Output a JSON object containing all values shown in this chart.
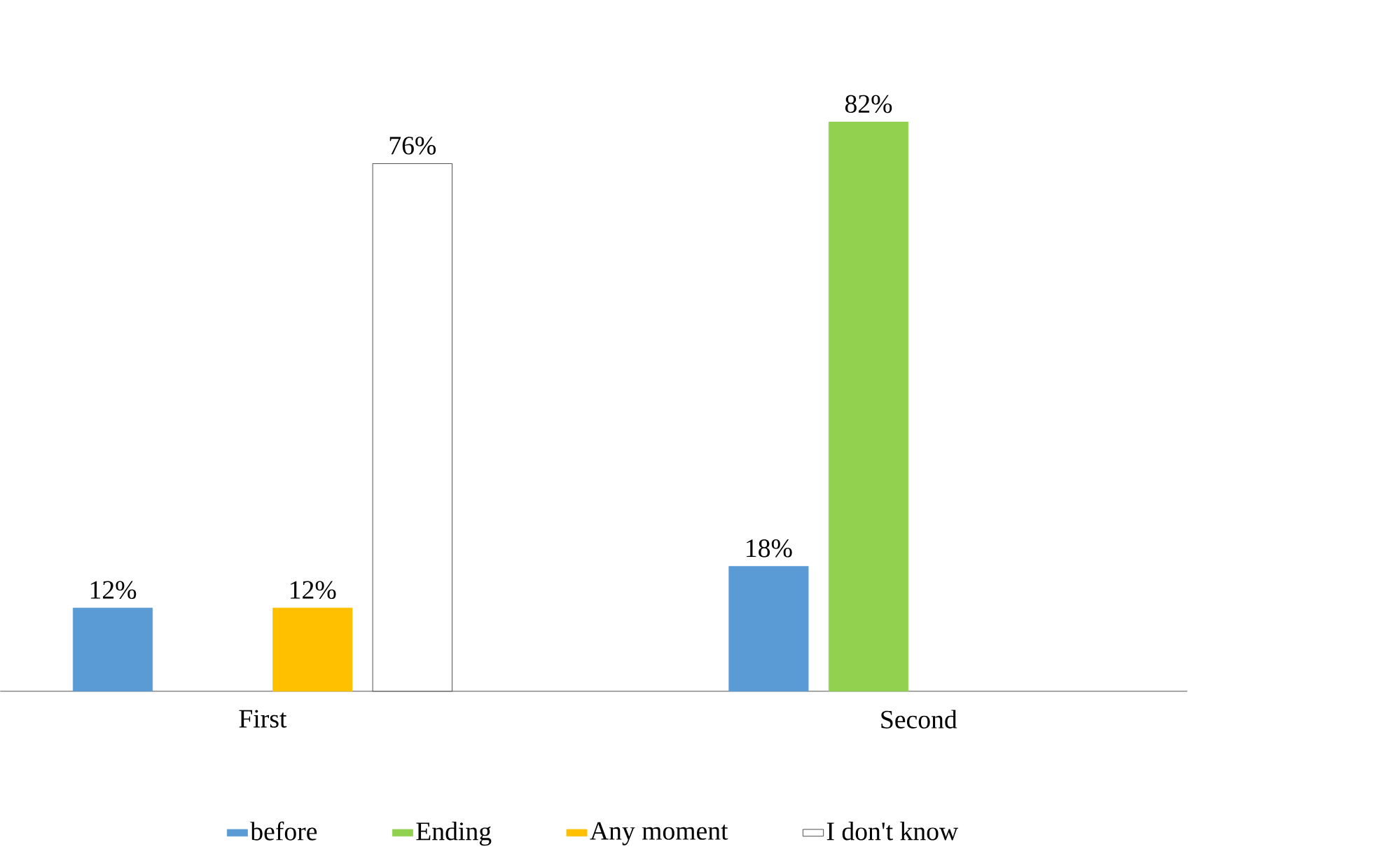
{
  "chart_data": {
    "type": "bar",
    "categories": [
      "First",
      "Second"
    ],
    "series": [
      {
        "name": "before",
        "color": "#5b9bd5",
        "values": [
          12,
          18
        ],
        "value_labels": [
          "12%",
          "18%"
        ]
      },
      {
        "name": "Ending",
        "color": "#92d050",
        "values": [
          null,
          82
        ],
        "value_labels": [
          null,
          "82%"
        ]
      },
      {
        "name": "Any moment",
        "color": "#ffc000",
        "values": [
          12,
          null
        ],
        "value_labels": [
          "12%",
          null
        ]
      },
      {
        "name": "I don't know",
        "color": "#ffffff",
        "values": [
          76,
          null
        ],
        "value_labels": [
          "76%",
          null
        ]
      }
    ],
    "legend": "bottom"
  }
}
